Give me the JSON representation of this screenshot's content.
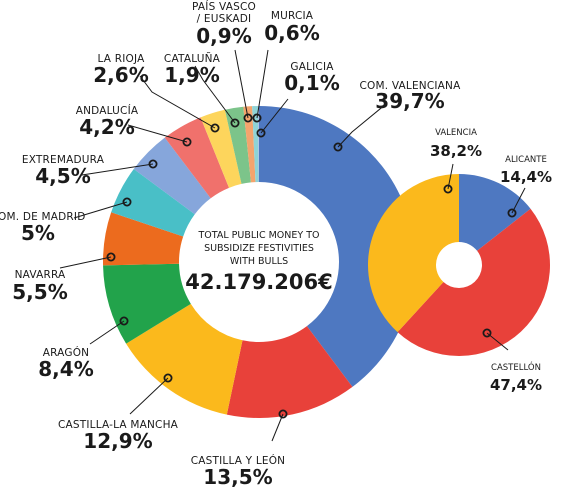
{
  "chart_data": [
    {
      "type": "pie",
      "center_text": [
        "TOTAL PUBLIC MONEY TO",
        "SUBSIDIZE FESTIVITIES",
        "WITH BULLS"
      ],
      "center_total": "42.179.206€",
      "slices": [
        {
          "name": "COM. VALENCIANA",
          "value": 39.7,
          "label": "39,7%",
          "color": "#4e78c1"
        },
        {
          "name": "CASTILLA Y LEÓN",
          "value": 13.5,
          "label": "13,5%",
          "color": "#e8413a"
        },
        {
          "name": "CASTILLA-LA MANCHA",
          "value": 12.9,
          "label": "12,9%",
          "color": "#fbb91c"
        },
        {
          "name": "ARAGÓN",
          "value": 8.4,
          "label": "8,4%",
          "color": "#22a34b"
        },
        {
          "name": "NAVARRA",
          "value": 5.5,
          "label": "5,5%",
          "color": "#ec6b1e"
        },
        {
          "name": "COM. DE MADRID",
          "value": 5.0,
          "label": "5%",
          "color": "#49bfc7"
        },
        {
          "name": "EXTREMADURA",
          "value": 4.5,
          "label": "4,5%",
          "color": "#86a6db"
        },
        {
          "name": "ANDALUCÍA",
          "value": 4.2,
          "label": "4,2%",
          "color": "#f0716c"
        },
        {
          "name": "LA RIOJA",
          "value": 2.6,
          "label": "2,6%",
          "color": "#fdd55c"
        },
        {
          "name": "CATALUÑA",
          "value": 1.9,
          "label": "1,9%",
          "color": "#7cc48a"
        },
        {
          "name": "PAÍS VASCO / EUSKADI",
          "name_lines": [
            "PAÍS VASCO",
            "/ EUSKADI"
          ],
          "value": 0.9,
          "label": "0,9%",
          "color": "#f4a46d"
        },
        {
          "name": "MURCIA",
          "value": 0.6,
          "label": "0,6%",
          "color": "#8fd3d6"
        },
        {
          "name": "GALICIA",
          "value": 0.1,
          "label": "0,1%",
          "color": "#a4bde6"
        }
      ]
    },
    {
      "type": "pie",
      "parent": "COM. VALENCIANA",
      "slices": [
        {
          "name": "ALICANTE",
          "value": 14.4,
          "label": "14,4%",
          "color": "#4e78c1"
        },
        {
          "name": "CASTELLÓN",
          "value": 47.4,
          "label": "47,4%",
          "color": "#e8413a"
        },
        {
          "name": "VALENCIA",
          "value": 38.2,
          "label": "38,2%",
          "color": "#fbb91c"
        }
      ]
    }
  ]
}
